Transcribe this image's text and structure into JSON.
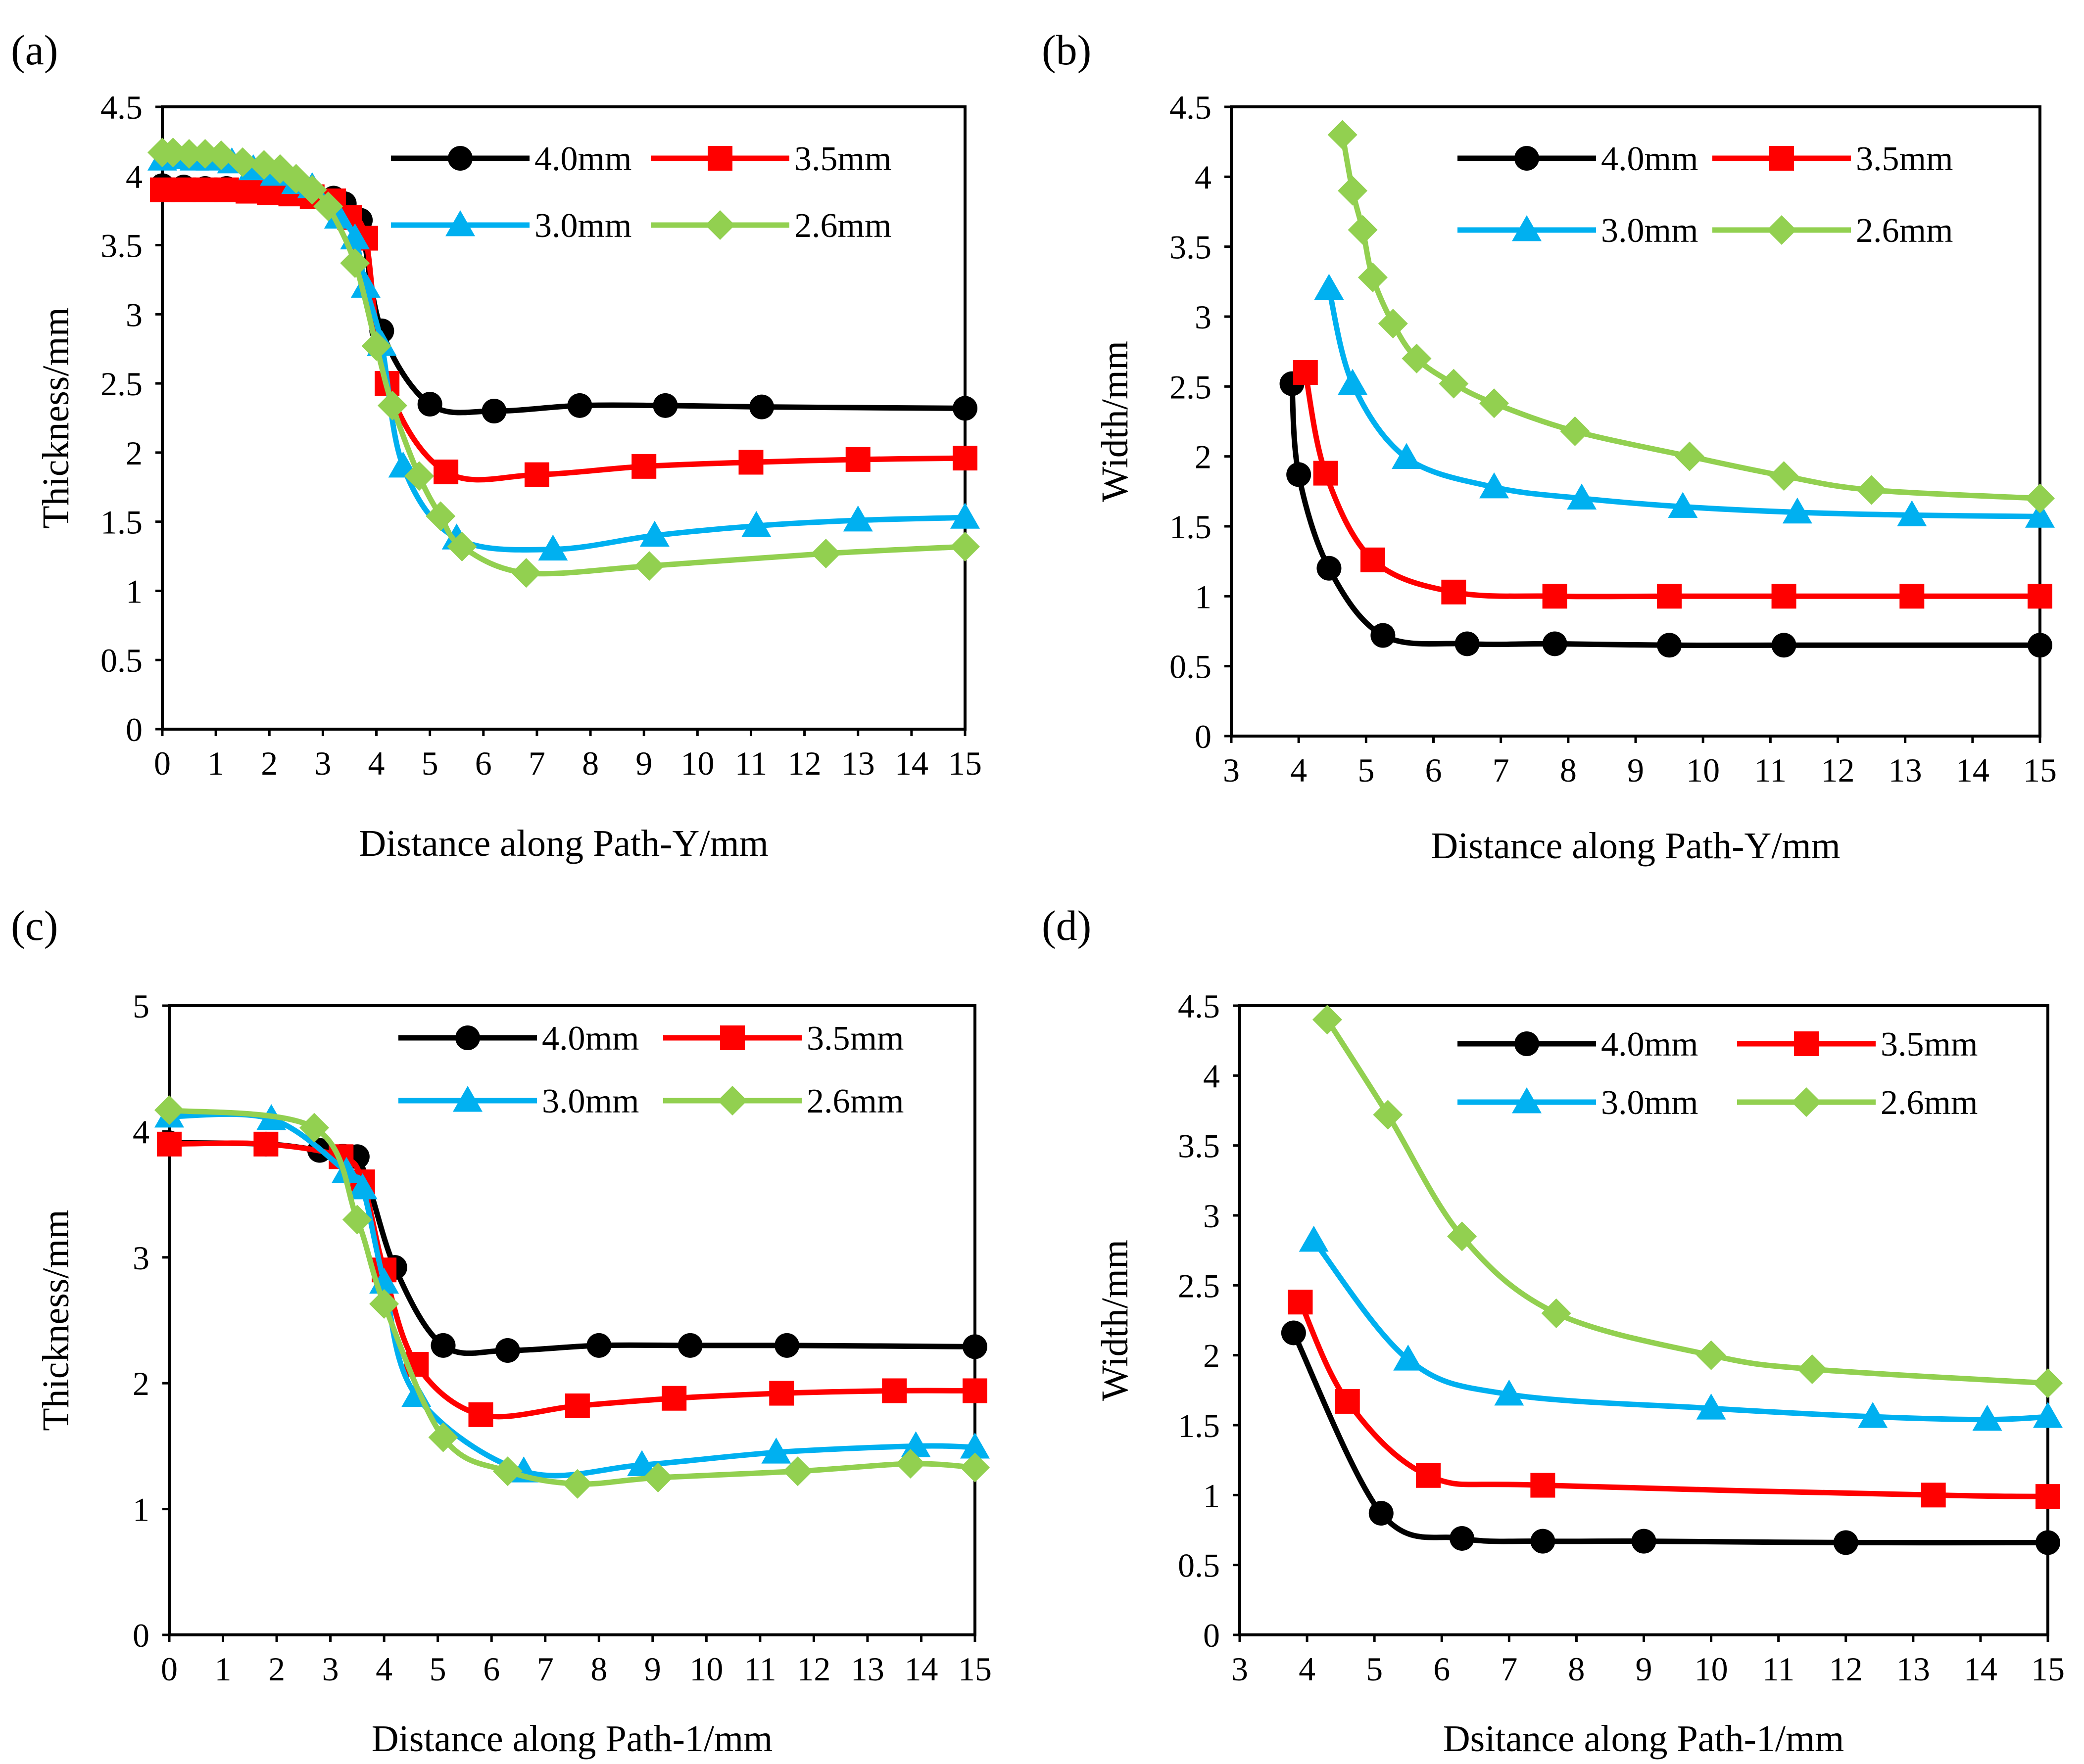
{
  "colors": {
    "s40": "#000000",
    "s35": "#ff0000",
    "s30": "#00b0f0",
    "s26": "#92d050"
  },
  "chart_data": [
    {
      "panel": "(a)",
      "type": "line",
      "xlabel": "Distance along Path-Y/mm",
      "ylabel": "Thickness/mm",
      "xlim": [
        0,
        15
      ],
      "ylim": [
        0,
        4.5
      ],
      "xticks": [
        "0",
        "1",
        "2",
        "3",
        "4",
        "5",
        "6",
        "7",
        "8",
        "9",
        "10",
        "11",
        "12",
        "13",
        "14",
        "15"
      ],
      "yticks": [
        "0",
        "0.5",
        "1",
        "1.5",
        "2",
        "2.5",
        "3",
        "3.5",
        "4",
        "4.5"
      ],
      "series": [
        {
          "name": "4.0mm",
          "marker": "circle",
          "x": [
            0,
            0.4,
            0.8,
            1.2,
            1.6,
            2.0,
            2.4,
            2.8,
            3.2,
            3.4,
            3.7,
            4.1,
            5.0,
            6.2,
            7.8,
            9.4,
            11.2,
            15.0
          ],
          "y": [
            3.93,
            3.92,
            3.91,
            3.91,
            3.9,
            3.89,
            3.88,
            3.87,
            3.84,
            3.8,
            3.68,
            2.88,
            2.35,
            2.3,
            2.34,
            2.34,
            2.33,
            2.32
          ]
        },
        {
          "name": "3.5mm",
          "marker": "square",
          "x": [
            0,
            0.4,
            0.8,
            1.2,
            1.6,
            2.0,
            2.4,
            2.8,
            3.2,
            3.5,
            3.8,
            4.2,
            5.3,
            7.0,
            9.0,
            11.0,
            13.0,
            15.0
          ],
          "y": [
            3.9,
            3.9,
            3.9,
            3.9,
            3.89,
            3.88,
            3.87,
            3.85,
            3.82,
            3.7,
            3.55,
            2.5,
            1.86,
            1.84,
            1.9,
            1.93,
            1.95,
            1.96
          ]
        },
        {
          "name": "3.0mm",
          "marker": "triangle",
          "x": [
            0,
            0.3,
            0.6,
            0.9,
            1.3,
            1.7,
            2.1,
            2.5,
            2.8,
            3.3,
            3.6,
            3.8,
            4.1,
            4.5,
            5.5,
            7.3,
            9.2,
            11.1,
            13.0,
            15.0
          ],
          "y": [
            4.12,
            4.13,
            4.12,
            4.12,
            4.1,
            4.05,
            4.01,
            3.95,
            3.92,
            3.7,
            3.55,
            3.2,
            2.78,
            1.9,
            1.38,
            1.3,
            1.4,
            1.47,
            1.51,
            1.53
          ]
        },
        {
          "name": "2.6mm",
          "marker": "diamond",
          "x": [
            0,
            0.2,
            0.5,
            0.8,
            1.1,
            1.5,
            1.9,
            2.2,
            2.5,
            2.8,
            3.1,
            3.6,
            4.0,
            4.3,
            4.8,
            5.2,
            5.6,
            6.8,
            9.1,
            12.4,
            15.0
          ],
          "y": [
            4.17,
            4.17,
            4.16,
            4.16,
            4.15,
            4.1,
            4.08,
            4.05,
            3.98,
            3.9,
            3.78,
            3.37,
            2.77,
            2.34,
            1.83,
            1.54,
            1.32,
            1.13,
            1.18,
            1.27,
            1.32
          ]
        }
      ]
    },
    {
      "panel": "(b)",
      "type": "line",
      "xlabel": "Distance along Path-Y/mm",
      "ylabel": "Width/mm",
      "xlim": [
        3,
        15
      ],
      "ylim": [
        0,
        4.5
      ],
      "xticks": [
        "3",
        "4",
        "5",
        "6",
        "7",
        "8",
        "9",
        "10",
        "11",
        "12",
        "13",
        "14",
        "15"
      ],
      "yticks": [
        "0",
        "0.5",
        "1",
        "1.5",
        "2",
        "2.5",
        "3",
        "3.5",
        "4",
        "4.5"
      ],
      "series": [
        {
          "name": "4.0mm",
          "marker": "circle",
          "x": [
            3.9,
            4.0,
            4.45,
            5.25,
            6.5,
            7.8,
            9.5,
            11.2,
            15.0
          ],
          "y": [
            2.52,
            1.87,
            1.2,
            0.72,
            0.66,
            0.66,
            0.65,
            0.65,
            0.65
          ]
        },
        {
          "name": "3.5mm",
          "marker": "square",
          "x": [
            4.1,
            4.4,
            5.1,
            6.3,
            7.8,
            9.5,
            11.2,
            13.1,
            15.0
          ],
          "y": [
            2.6,
            1.88,
            1.26,
            1.03,
            1.0,
            1.0,
            1.0,
            1.0,
            1.0
          ]
        },
        {
          "name": "3.0mm",
          "marker": "triangle",
          "x": [
            4.45,
            4.8,
            5.6,
            6.9,
            8.2,
            9.7,
            11.4,
            13.1,
            15.0
          ],
          "y": [
            3.2,
            2.52,
            1.99,
            1.78,
            1.7,
            1.64,
            1.6,
            1.58,
            1.57
          ]
        },
        {
          "name": "2.6mm",
          "marker": "diamond",
          "x": [
            4.65,
            4.8,
            4.95,
            5.1,
            5.4,
            5.75,
            6.3,
            6.9,
            8.1,
            9.8,
            11.2,
            12.5,
            15.0
          ],
          "y": [
            4.3,
            3.9,
            3.62,
            3.28,
            2.95,
            2.7,
            2.52,
            2.38,
            2.18,
            2.0,
            1.86,
            1.76,
            1.7
          ]
        }
      ]
    },
    {
      "panel": "(c)",
      "type": "line",
      "xlabel": "Distance along Path-1/mm",
      "ylabel": "Thickness/mm",
      "xlim": [
        0,
        15
      ],
      "ylim": [
        0,
        5
      ],
      "xticks": [
        "0",
        "1",
        "2",
        "3",
        "4",
        "5",
        "6",
        "7",
        "8",
        "9",
        "10",
        "11",
        "12",
        "13",
        "14",
        "15"
      ],
      "yticks": [
        "0",
        "1",
        "2",
        "3",
        "4",
        "5"
      ],
      "series": [
        {
          "name": "4.0mm",
          "marker": "circle",
          "x": [
            0,
            1.8,
            2.8,
            3.5,
            4.2,
            5.1,
            6.3,
            8.0,
            9.7,
            11.5,
            15.0
          ],
          "y": [
            3.91,
            3.9,
            3.85,
            3.8,
            2.92,
            2.3,
            2.26,
            2.3,
            2.3,
            2.3,
            2.29
          ]
        },
        {
          "name": "3.5mm",
          "marker": "square",
          "x": [
            0,
            1.8,
            3.2,
            3.6,
            4.0,
            4.6,
            5.8,
            7.6,
            9.4,
            11.4,
            13.5,
            15.0
          ],
          "y": [
            3.9,
            3.9,
            3.8,
            3.6,
            2.9,
            2.15,
            1.75,
            1.82,
            1.88,
            1.92,
            1.94,
            1.94
          ]
        },
        {
          "name": "3.0mm",
          "marker": "triangle",
          "x": [
            0,
            1.9,
            3.3,
            3.6,
            4.0,
            4.6,
            6.6,
            8.8,
            11.3,
            13.9,
            15.0
          ],
          "y": [
            4.12,
            4.1,
            3.68,
            3.55,
            2.8,
            1.9,
            1.3,
            1.35,
            1.45,
            1.5,
            1.49
          ]
        },
        {
          "name": "2.6mm",
          "marker": "diamond",
          "x": [
            0,
            2.7,
            3.5,
            4.0,
            5.1,
            6.3,
            7.6,
            9.1,
            11.7,
            13.8,
            15.0
          ],
          "y": [
            4.17,
            4.03,
            3.3,
            2.63,
            1.57,
            1.3,
            1.2,
            1.25,
            1.3,
            1.36,
            1.33
          ]
        }
      ]
    },
    {
      "panel": "(d)",
      "type": "line",
      "xlabel": "Dsitance along Path-1/mm",
      "ylabel": "Width/mm",
      "xlim": [
        3,
        15
      ],
      "ylim": [
        0,
        4.5
      ],
      "xticks": [
        "3",
        "4",
        "5",
        "6",
        "7",
        "8",
        "9",
        "10",
        "11",
        "12",
        "13",
        "14",
        "15"
      ],
      "yticks": [
        "0",
        "0.5",
        "1",
        "1.5",
        "2",
        "2.5",
        "3",
        "3.5",
        "4",
        "4.5"
      ],
      "series": [
        {
          "name": "4.0mm",
          "marker": "circle",
          "x": [
            3.8,
            5.1,
            6.3,
            7.5,
            9.0,
            12.0,
            15.0
          ],
          "y": [
            2.16,
            0.87,
            0.69,
            0.67,
            0.67,
            0.66,
            0.66
          ]
        },
        {
          "name": "3.5mm",
          "marker": "square",
          "x": [
            3.9,
            4.6,
            5.8,
            7.5,
            13.3,
            15.0
          ],
          "y": [
            2.38,
            1.67,
            1.14,
            1.07,
            1.0,
            0.99
          ]
        },
        {
          "name": "3.0mm",
          "marker": "triangle",
          "x": [
            4.1,
            5.5,
            7.0,
            10.0,
            12.4,
            14.1,
            15.0
          ],
          "y": [
            2.82,
            1.97,
            1.72,
            1.62,
            1.56,
            1.54,
            1.56
          ]
        },
        {
          "name": "2.6mm",
          "marker": "diamond",
          "x": [
            4.3,
            5.2,
            6.3,
            7.7,
            10.0,
            11.5,
            15.0
          ],
          "y": [
            4.4,
            3.72,
            2.85,
            2.3,
            2.0,
            1.9,
            1.8
          ]
        }
      ]
    }
  ]
}
